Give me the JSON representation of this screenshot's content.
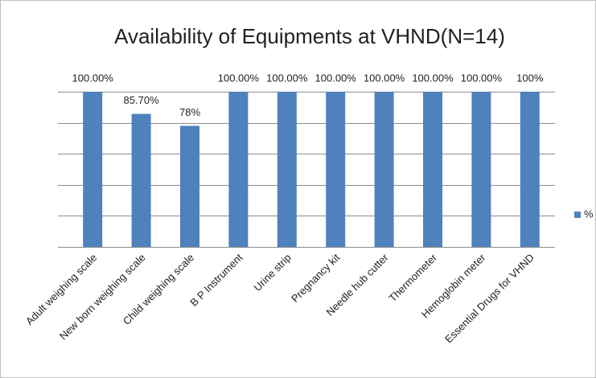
{
  "chart_data": {
    "type": "bar",
    "title": "Availability of Equipments at VHND(N=14)",
    "categories": [
      "Adult weighing scale",
      "New born weighing scale",
      "Child weighing scale",
      "B P Instrument",
      "Urine strip",
      "Pregnancy kit",
      "Needle hub cutter",
      "Thermometer",
      "Hemoglobin meter",
      "Essential Drugs for VHND"
    ],
    "series": [
      {
        "name": "%",
        "color": "#4f81bd",
        "values": [
          100,
          85.7,
          78,
          100,
          100,
          100,
          100,
          100,
          100,
          100
        ],
        "value_labels": [
          "100.00%",
          "85.70%",
          "78%",
          "100.00%",
          "100.00%",
          "100.00%",
          "100.00%",
          "100.00%",
          "100.00%",
          "100%"
        ]
      }
    ],
    "ylim": [
      0,
      100
    ],
    "yticks": [
      0,
      20,
      40,
      60,
      80,
      100
    ],
    "grid": true,
    "legend": "right"
  }
}
